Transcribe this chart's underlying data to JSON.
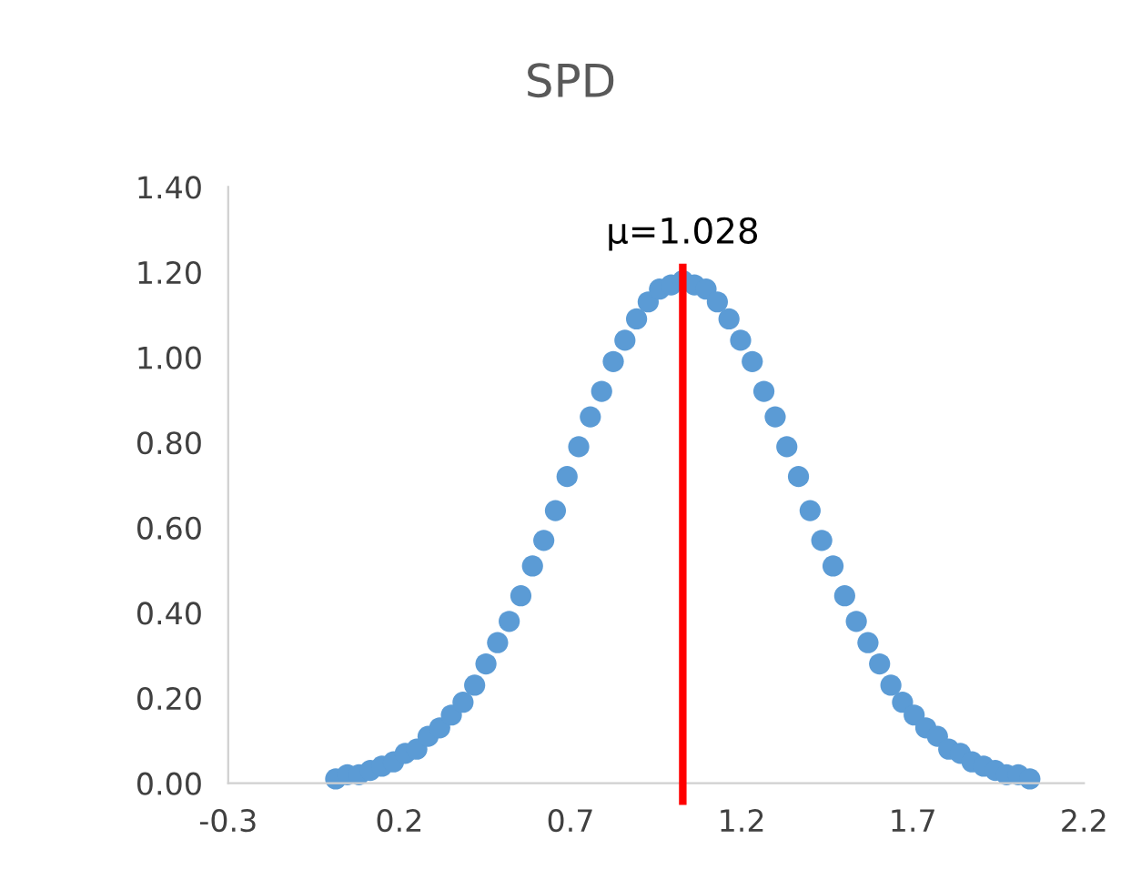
{
  "chart_data": {
    "type": "scatter",
    "title": "SPD",
    "x": [
      0.014,
      0.048,
      0.082,
      0.115,
      0.149,
      0.183,
      0.217,
      0.251,
      0.284,
      0.318,
      0.352,
      0.386,
      0.42,
      0.453,
      0.487,
      0.521,
      0.555,
      0.589,
      0.622,
      0.656,
      0.69,
      0.724,
      0.758,
      0.791,
      0.825,
      0.859,
      0.893,
      0.927,
      0.96,
      0.994,
      1.028,
      1.062,
      1.096,
      1.129,
      1.163,
      1.197,
      1.231,
      1.265,
      1.298,
      1.332,
      1.366,
      1.4,
      1.434,
      1.467,
      1.501,
      1.535,
      1.569,
      1.603,
      1.636,
      1.67,
      1.704,
      1.738,
      1.772,
      1.805,
      1.839,
      1.873,
      1.907,
      1.941,
      1.974,
      2.008,
      2.042
    ],
    "series": [
      {
        "color": "#5b9bd5",
        "values": [
          0.01,
          0.02,
          0.02,
          0.03,
          0.04,
          0.05,
          0.07,
          0.08,
          0.11,
          0.13,
          0.16,
          0.19,
          0.23,
          0.28,
          0.33,
          0.38,
          0.44,
          0.51,
          0.57,
          0.64,
          0.72,
          0.79,
          0.86,
          0.92,
          0.99,
          1.04,
          1.09,
          1.13,
          1.16,
          1.17,
          1.18,
          1.17,
          1.16,
          1.13,
          1.09,
          1.04,
          0.99,
          0.92,
          0.86,
          0.79,
          0.72,
          0.64,
          0.57,
          0.51,
          0.44,
          0.38,
          0.33,
          0.28,
          0.23,
          0.19,
          0.16,
          0.13,
          0.11,
          0.08,
          0.07,
          0.05,
          0.04,
          0.03,
          0.02,
          0.02,
          0.01
        ]
      }
    ],
    "marker": "circle",
    "xlim": [
      -0.3,
      2.2
    ],
    "xticks": [
      -0.3,
      0.2,
      0.7,
      1.2,
      1.7,
      2.2
    ],
    "ylim": [
      0,
      1.4
    ],
    "yticks": [
      {
        "value": 0,
        "label": "0.00"
      },
      {
        "value": 0.2,
        "label": "0.20"
      },
      {
        "value": 0.4,
        "label": "0.40"
      },
      {
        "value": 0.6,
        "label": "0.60"
      },
      {
        "value": 0.8,
        "label": "0.80"
      },
      {
        "value": 1.0,
        "label": "1.00"
      },
      {
        "value": 1.2,
        "label": "1.20"
      },
      {
        "value": 1.4,
        "label": "1.40"
      }
    ],
    "ref_lines": [
      {
        "axis": "x",
        "value": 1.028,
        "label": "μ=1.028",
        "color": "#ff0000"
      }
    ],
    "grid": false,
    "legend": false
  }
}
